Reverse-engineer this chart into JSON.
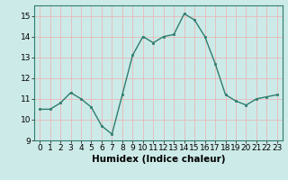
{
  "x": [
    0,
    1,
    2,
    3,
    4,
    5,
    6,
    7,
    8,
    9,
    10,
    11,
    12,
    13,
    14,
    15,
    16,
    17,
    18,
    19,
    20,
    21,
    22,
    23
  ],
  "y": [
    10.5,
    10.5,
    10.8,
    11.3,
    11.0,
    10.6,
    9.7,
    9.3,
    11.2,
    13.1,
    14.0,
    13.7,
    14.0,
    14.1,
    15.1,
    14.8,
    14.0,
    12.7,
    11.2,
    10.9,
    10.7,
    11.0,
    11.1,
    11.2
  ],
  "line_color": "#2e7d6e",
  "marker": "s",
  "marker_size": 2.0,
  "line_width": 1.0,
  "bg_color": "#cceae8",
  "grid_color": "#e8b8b8",
  "xlabel": "Humidex (Indice chaleur)",
  "xlabel_fontsize": 7.5,
  "ylim": [
    9,
    15.5
  ],
  "xlim": [
    -0.5,
    23.5
  ],
  "yticks": [
    9,
    10,
    11,
    12,
    13,
    14,
    15
  ],
  "xticks": [
    0,
    1,
    2,
    3,
    4,
    5,
    6,
    7,
    8,
    9,
    10,
    11,
    12,
    13,
    14,
    15,
    16,
    17,
    18,
    19,
    20,
    21,
    22,
    23
  ],
  "tick_fontsize": 6.5
}
